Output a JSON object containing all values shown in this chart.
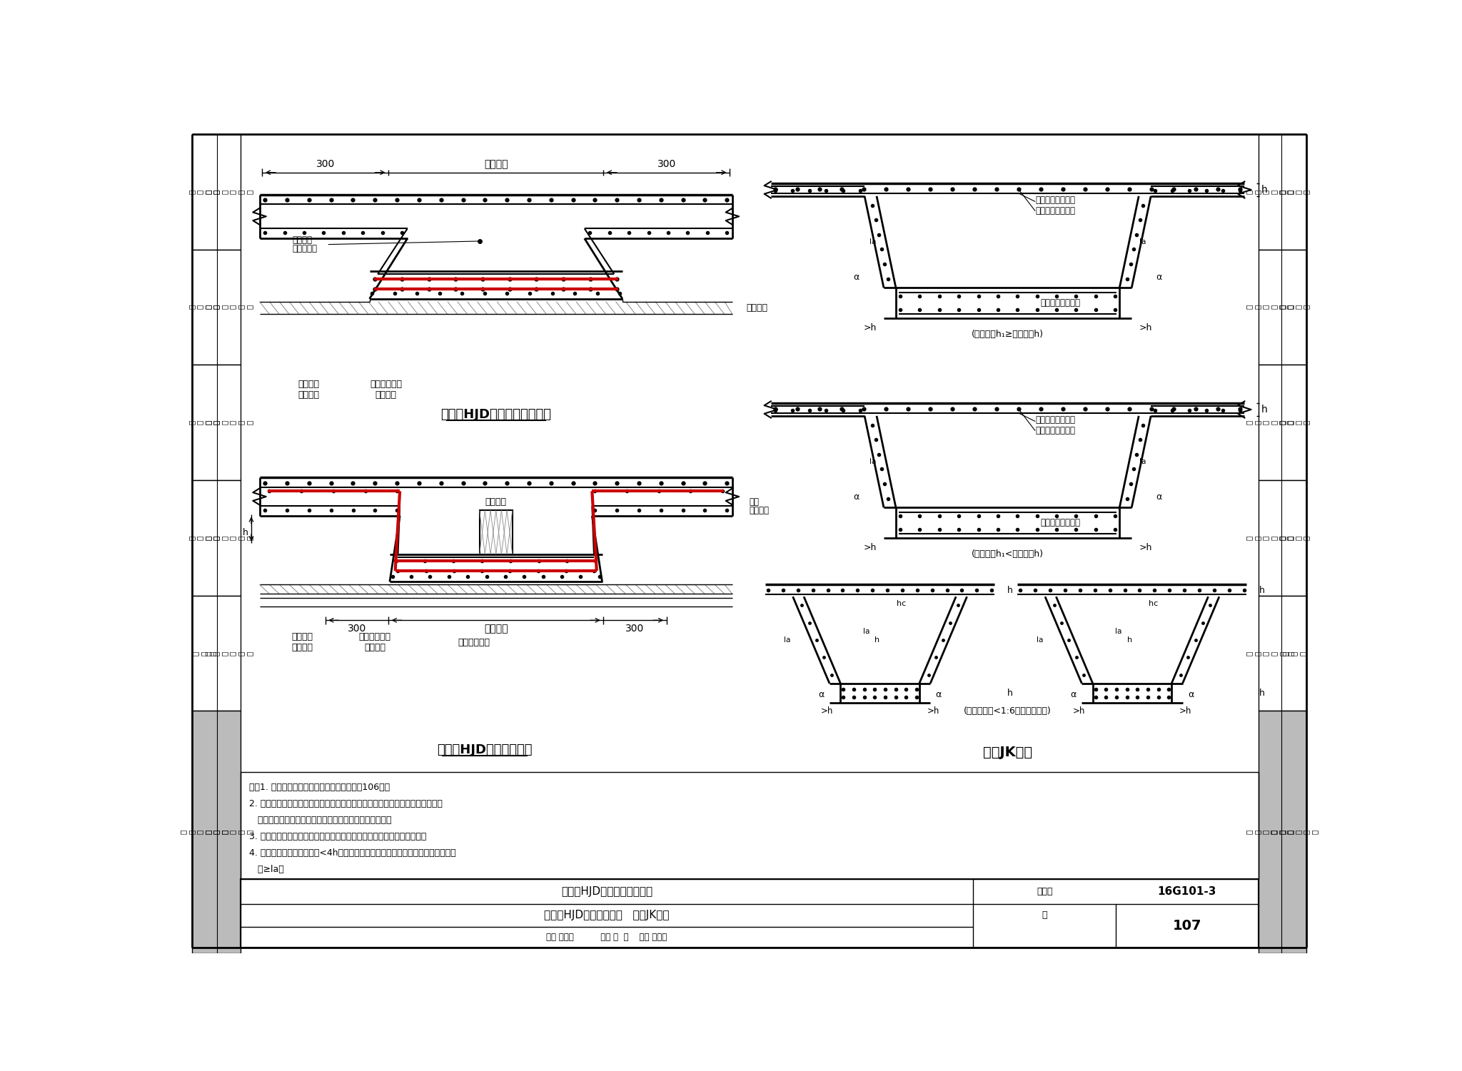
{
  "bg_color": "#FFFFFF",
  "diagram1_title": "后浇带HJD下抗水压垫层构造",
  "diagram2_title": "后浇带HJD超前止水构造",
  "diagram3_title": "基坑JK构造",
  "title_box_text1": "后浇带HJD下抗水压垫层构造",
  "title_box_text2": "后浇带HJD超前止水构造   基坑JK构造",
  "figure_no": "16G101-3",
  "page_no": "107",
  "review_text": "审核 尤天直          校对 毕  磊    设计 何喜明",
  "sidebar_rows": [
    {
      "inner": "标\n准\n构\n造\n详\n图",
      "outer": "一\n般\n构\n造",
      "gray": false
    },
    {
      "inner": "标\n准\n构\n造\n详\n图",
      "outer": "独\n立\n基\n础",
      "gray": false
    },
    {
      "inner": "标\n准\n构\n造\n详\n图",
      "outer": "条\n形\n基\n础",
      "gray": false
    },
    {
      "inner": "标\n准\n构\n造\n详\n图",
      "outer": "筏\n形\n基\n础",
      "gray": false
    },
    {
      "inner": "标\n准\n构\n造\n详\n图",
      "outer": "桩\n基\n础",
      "gray": false
    },
    {
      "inner": "标\n准\n构\n造\n详\n图",
      "outer": "基\n础\n相\n关\n构\n造",
      "gray": true
    }
  ],
  "notes": [
    "注：1. 后浇带留筋方式及宽度要求见本图集第106页。",
    "2. 基坑同一层面两向正交钢筋的上下位置与基础底板对应相同。基础底板同一层",
    "   面的交叉纵筋何向在下，何向在上，应按具体设计说明。",
    "3. 根据施工是否方便，基坑侧壁的水平钢筋可位于内侧，也可位于外侧。",
    "4. 基坑中当钢筋直锚至对边<4h时，可以伸至对边钢筋内侧顺势弯折，总锚固长度",
    "   应≥la。"
  ],
  "colors": {
    "red": "#CC0000",
    "black": "#000000",
    "gray_hatch": "#888888",
    "sidebar_gray": "#BBBBBB"
  }
}
